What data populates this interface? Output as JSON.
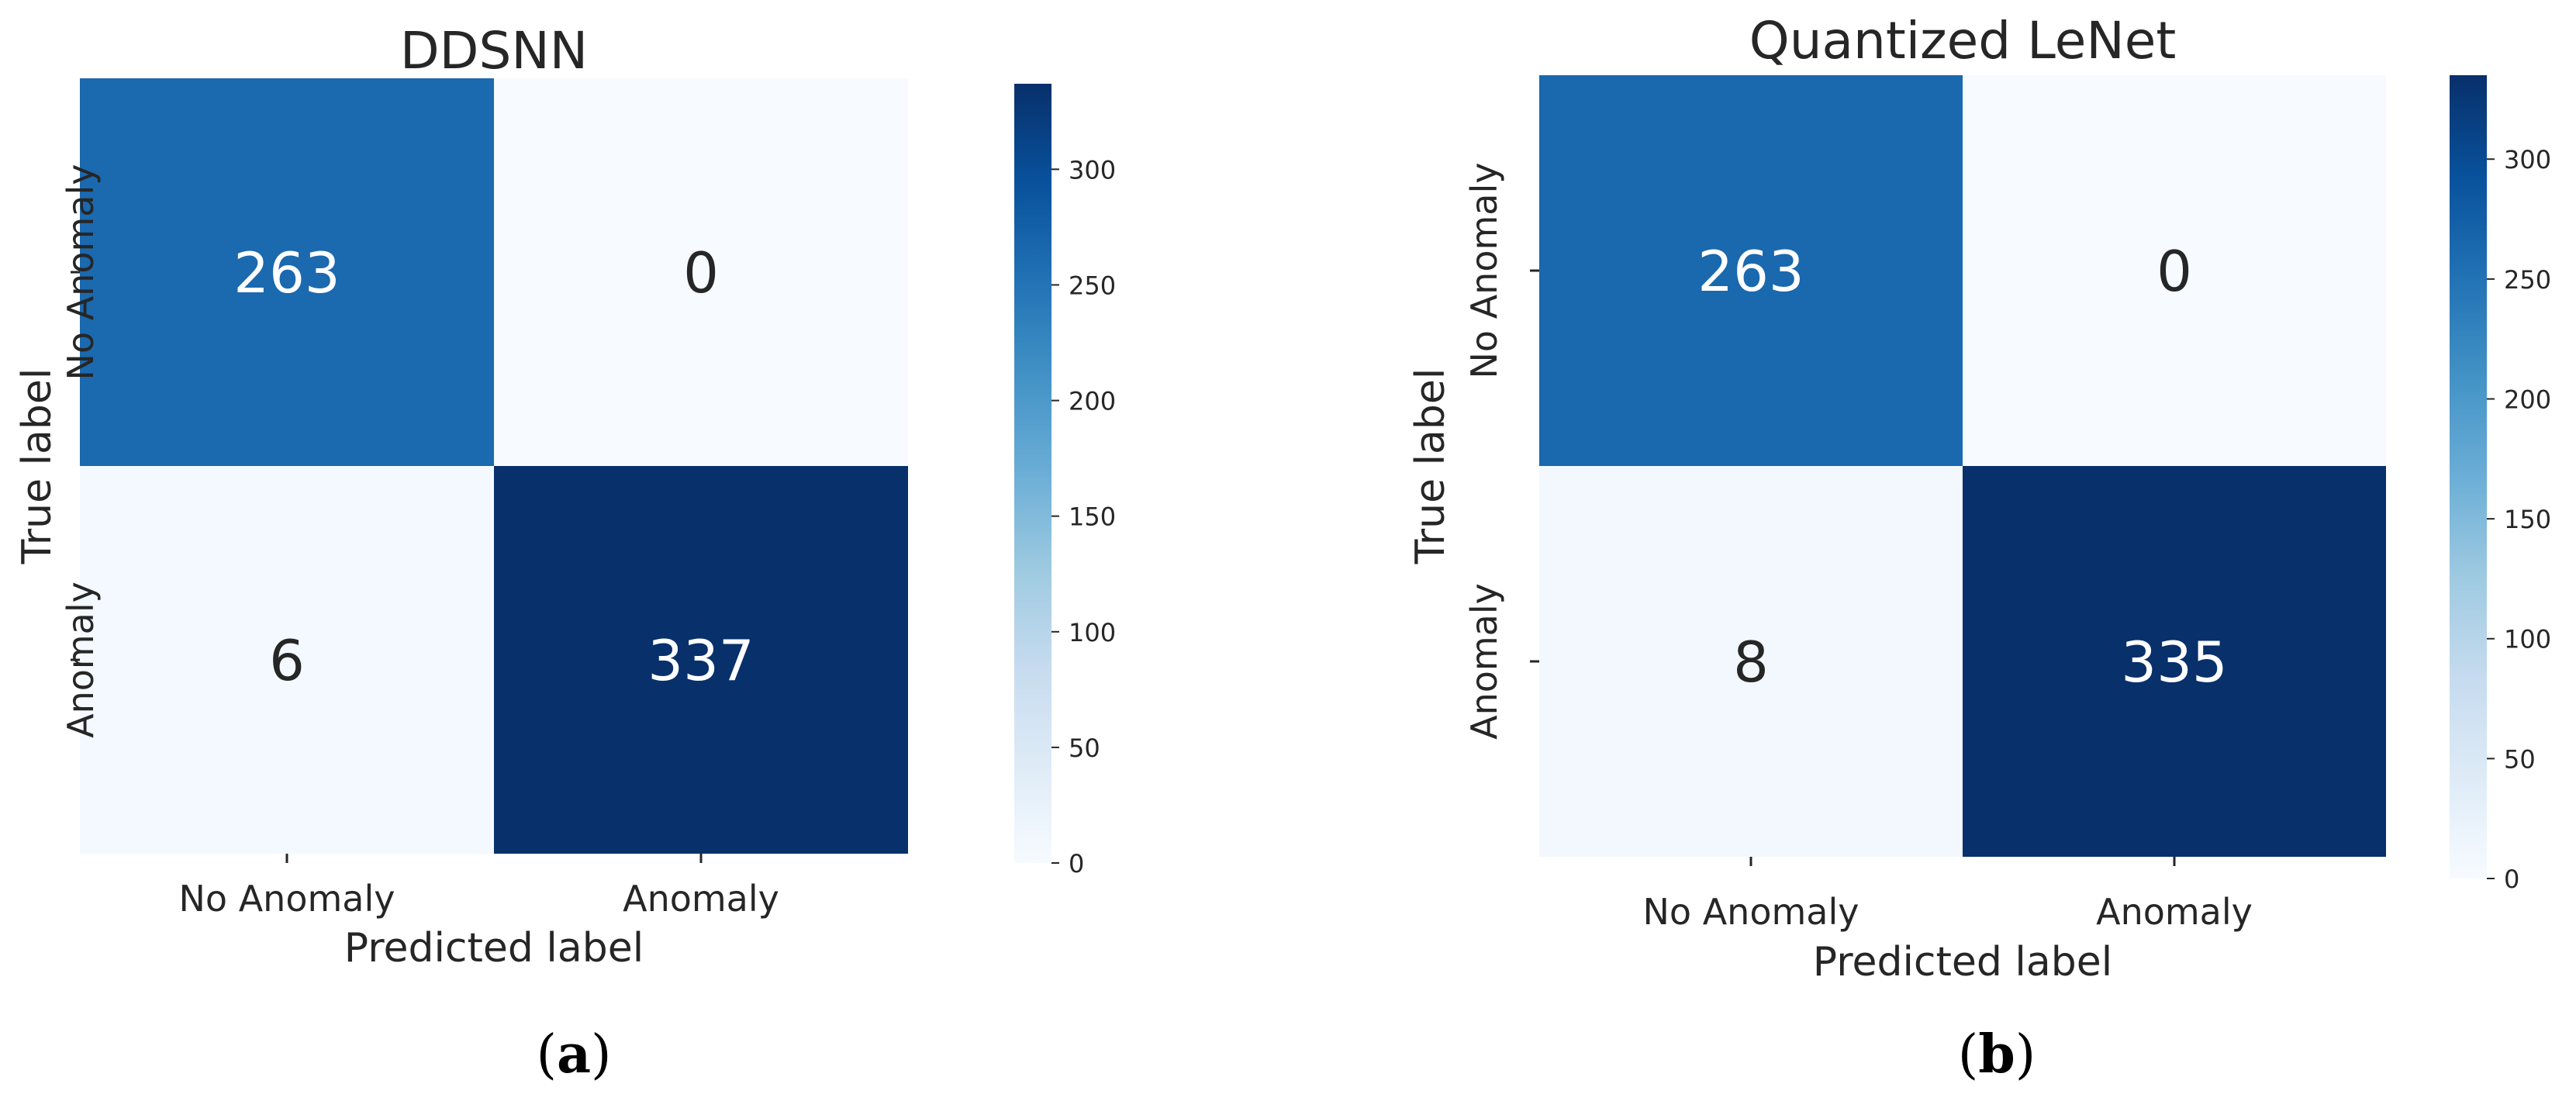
{
  "chart_data": [
    {
      "type": "heatmap",
      "panel_label": "a",
      "title": "DDSNN",
      "xlabel": "Predicted label",
      "ylabel": "True label",
      "x_tick_labels": [
        "No Anomaly",
        "Anomaly"
      ],
      "y_tick_labels": [
        "No Anomaly",
        "Anomaly"
      ],
      "matrix": [
        [
          263,
          0
        ],
        [
          6,
          337
        ]
      ],
      "colormap": "Blues",
      "vmin": 0,
      "vmax": 337,
      "colorbar_ticks": [
        "0",
        "50",
        "100",
        "150",
        "200",
        "250",
        "300"
      ]
    },
    {
      "type": "heatmap",
      "panel_label": "b",
      "title": "Quantized LeNet",
      "xlabel": "Predicted label",
      "ylabel": "True label",
      "x_tick_labels": [
        "No Anomaly",
        "Anomaly"
      ],
      "y_tick_labels": [
        "No Anomaly",
        "Anomaly"
      ],
      "matrix": [
        [
          263,
          0
        ],
        [
          8,
          335
        ]
      ],
      "colormap": "Blues",
      "vmin": 0,
      "vmax": 335,
      "colorbar_ticks": [
        "0",
        "50",
        "100",
        "150",
        "200",
        "250",
        "300"
      ]
    }
  ]
}
